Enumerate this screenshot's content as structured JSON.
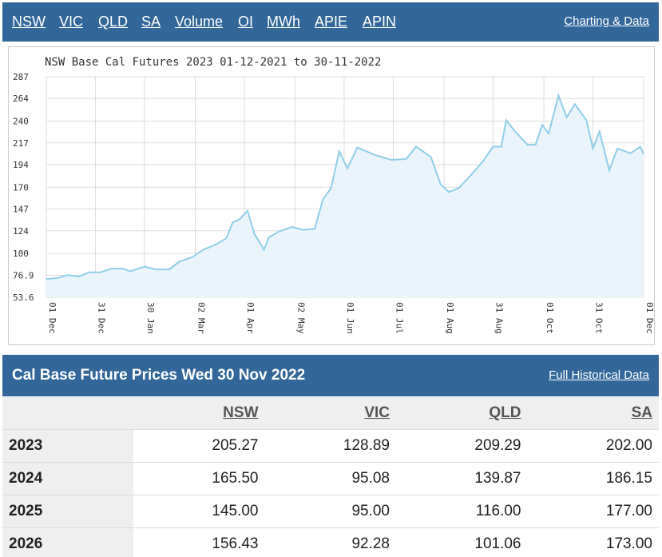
{
  "nav": {
    "links": [
      "NSW",
      "VIC",
      "QLD",
      "SA",
      "Volume",
      "OI",
      "MWh",
      "APIE",
      "APIN"
    ],
    "right_link": "Charting & Data"
  },
  "chart_data": {
    "type": "area",
    "title": "NSW Base Cal Futures 2023 01-12-2021 to 30-11-2022",
    "color": "#8fcfe8",
    "fill": "#eaf5fb",
    "grid": true,
    "xlim": [
      0,
      365
    ],
    "ylim": [
      53.6,
      287
    ],
    "yticks": [
      53.6,
      76.9,
      100,
      124,
      147,
      170,
      194,
      217,
      240,
      264,
      287
    ],
    "xticks": [
      {
        "value": 0,
        "label": "01 Dec"
      },
      {
        "value": 30,
        "label": "31 Dec"
      },
      {
        "value": 60,
        "label": "30 Jan"
      },
      {
        "value": 91,
        "label": "02 Mar"
      },
      {
        "value": 121,
        "label": "01 Apr"
      },
      {
        "value": 152,
        "label": "02 May"
      },
      {
        "value": 182,
        "label": "01 Jun"
      },
      {
        "value": 212,
        "label": "01 Jul"
      },
      {
        "value": 243,
        "label": "01 Aug"
      },
      {
        "value": 273,
        "label": "31 Aug"
      },
      {
        "value": 304,
        "label": "01 Oct"
      },
      {
        "value": 334,
        "label": "31 Oct"
      },
      {
        "value": 365,
        "label": "01 Dec"
      }
    ],
    "x": [
      0,
      7,
      13,
      20,
      26,
      33,
      40,
      47,
      51,
      60,
      67,
      75,
      81,
      89,
      96,
      103,
      110,
      114,
      118,
      123,
      127,
      133,
      136,
      142,
      150,
      157,
      164,
      169,
      174,
      179,
      184,
      190,
      201,
      211,
      220,
      226,
      235,
      241,
      246,
      252,
      259,
      267,
      273,
      278,
      281,
      286,
      294,
      299,
      303,
      307,
      313,
      318,
      323,
      330,
      334,
      338,
      344,
      349,
      357,
      363,
      365
    ],
    "values": [
      73,
      74,
      77,
      75.5,
      80,
      80,
      84,
      84,
      81,
      86,
      83,
      83,
      91,
      96,
      104,
      109,
      116,
      133,
      136,
      145,
      121,
      104,
      117,
      123,
      128,
      125,
      126,
      157,
      169,
      208,
      190,
      212,
      204,
      199,
      200,
      213,
      202,
      173,
      165,
      169,
      182,
      198,
      213,
      213,
      241,
      230,
      215,
      215,
      236,
      227,
      267,
      244,
      258,
      241,
      211,
      229,
      188,
      211,
      206,
      213,
      205
    ]
  },
  "section": {
    "title": "Cal Base Future Prices Wed 30 Nov 2022",
    "link": "Full Historical Data"
  },
  "table": {
    "columns": [
      "NSW",
      "VIC",
      "QLD",
      "SA"
    ],
    "rows": [
      [
        "2023",
        "205.27",
        "128.89",
        "209.29",
        "202.00"
      ],
      [
        "2024",
        "165.50",
        "95.08",
        "139.87",
        "186.15"
      ],
      [
        "2025",
        "145.00",
        "95.00",
        "116.00",
        "177.00"
      ],
      [
        "2026",
        "156.43",
        "92.28",
        "101.06",
        "173.00"
      ]
    ]
  }
}
